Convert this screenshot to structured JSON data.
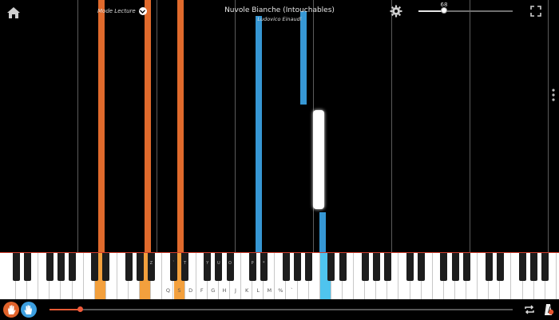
{
  "header": {
    "title": "Nuvole Bianche (Intouchables)",
    "subtitle": "Ludovico Einaudi",
    "mode_label": "Mode Lecture",
    "zoom_value": "68",
    "zoom_fraction": 0.27
  },
  "icons": {
    "home": "home-icon",
    "settings": "gear-icon",
    "fullscreen": "fullscreen-icon",
    "more": "more-vertical-icon",
    "left_hand": "left-hand-icon",
    "right_hand": "right-hand-icon",
    "loop": "loop-icon",
    "metronome": "metronome-icon"
  },
  "colors": {
    "left_hand": "#e06a2c",
    "right_hand": "#3697d4",
    "active_left_key": "#f3a03d",
    "active_right_key": "#4fc4ee",
    "progress": "#e65a35"
  },
  "keyboard": {
    "white_labels": [
      "Q",
      "S",
      "D",
      "F",
      "G",
      "H",
      "J",
      "K",
      "L",
      "M",
      "%",
      "`"
    ],
    "black_labels": [
      "Z",
      "`",
      "T",
      "Y",
      "U",
      "O",
      "P",
      "*"
    ]
  },
  "playback": {
    "progress_fraction": 0.065
  }
}
